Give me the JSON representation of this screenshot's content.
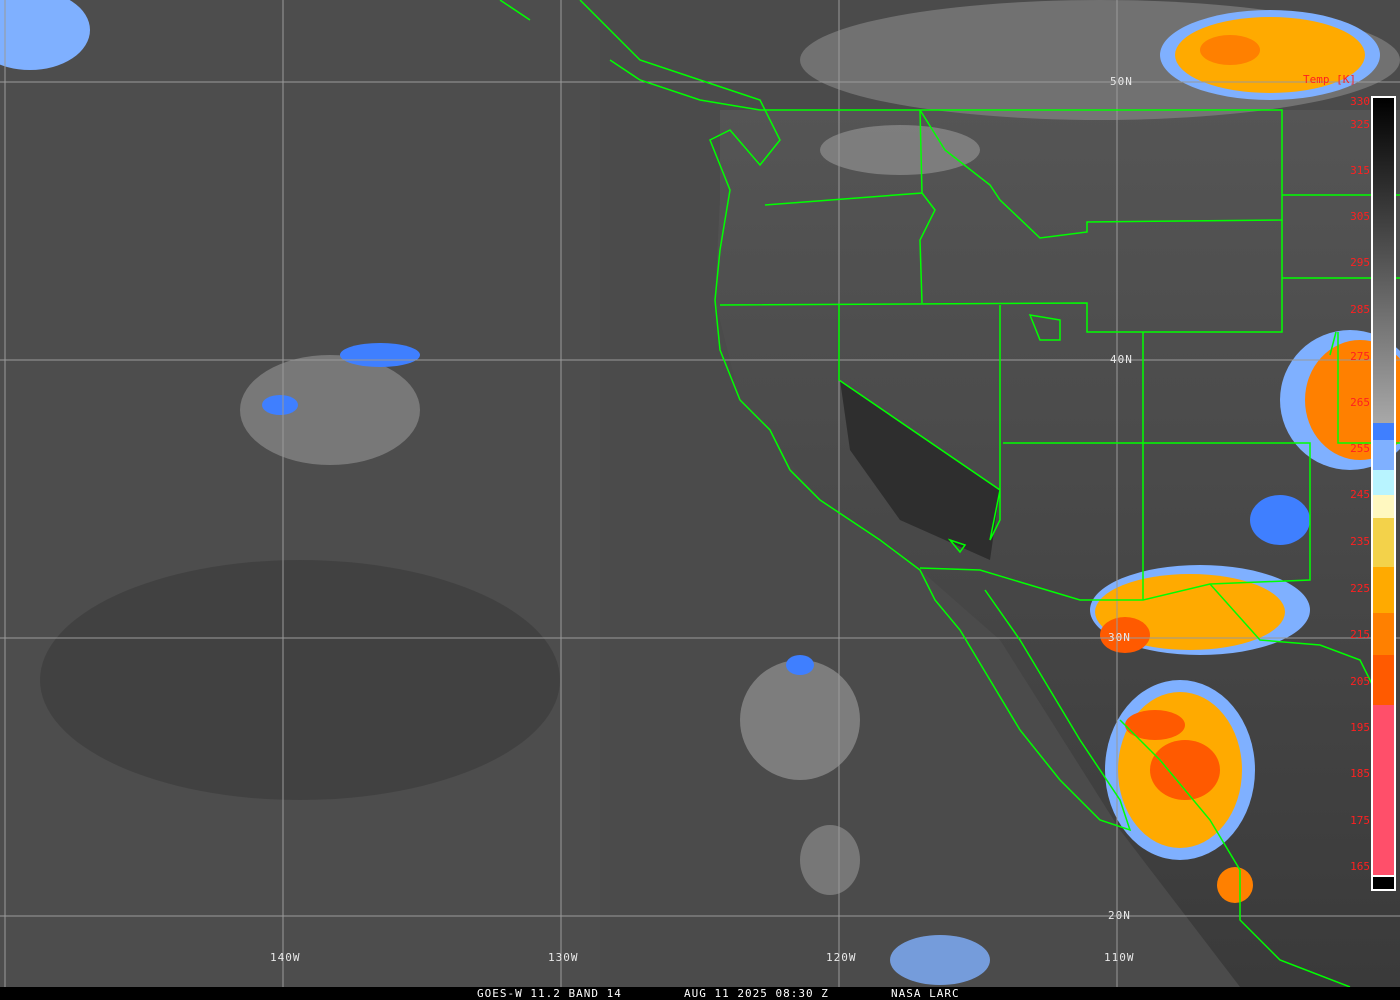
{
  "colorbar": {
    "title": "Temp [K]",
    "ticks": [
      "330",
      "325",
      "315",
      "305",
      "295",
      "285",
      "275",
      "265",
      "255",
      "245",
      "235",
      "225",
      "215",
      "205",
      "195",
      "185",
      "175",
      "165"
    ],
    "colors": {
      "cold_pink": "#ff4f6a",
      "red_orange": "#ff5a00",
      "orange": "#ff8000",
      "amber": "#ffaa00",
      "yellow": "#f3d24a",
      "cream": "#fff8c0",
      "cyan": "#b8f4ff",
      "light_blue": "#7fb0ff",
      "blue": "#3f7fff"
    }
  },
  "grid": {
    "longitudes": [
      "140W",
      "130W",
      "120W",
      "110W"
    ],
    "latitudes": [
      "50N",
      "40N",
      "30N",
      "20N"
    ],
    "line_color": "#9a9a9a",
    "boundary_color": "#00ff00"
  },
  "footer": {
    "satellite": "GOES-W 11.2 BAND 14",
    "datetime": "AUG 11 2025 08:30 Z",
    "credit": "NASA LARC"
  }
}
